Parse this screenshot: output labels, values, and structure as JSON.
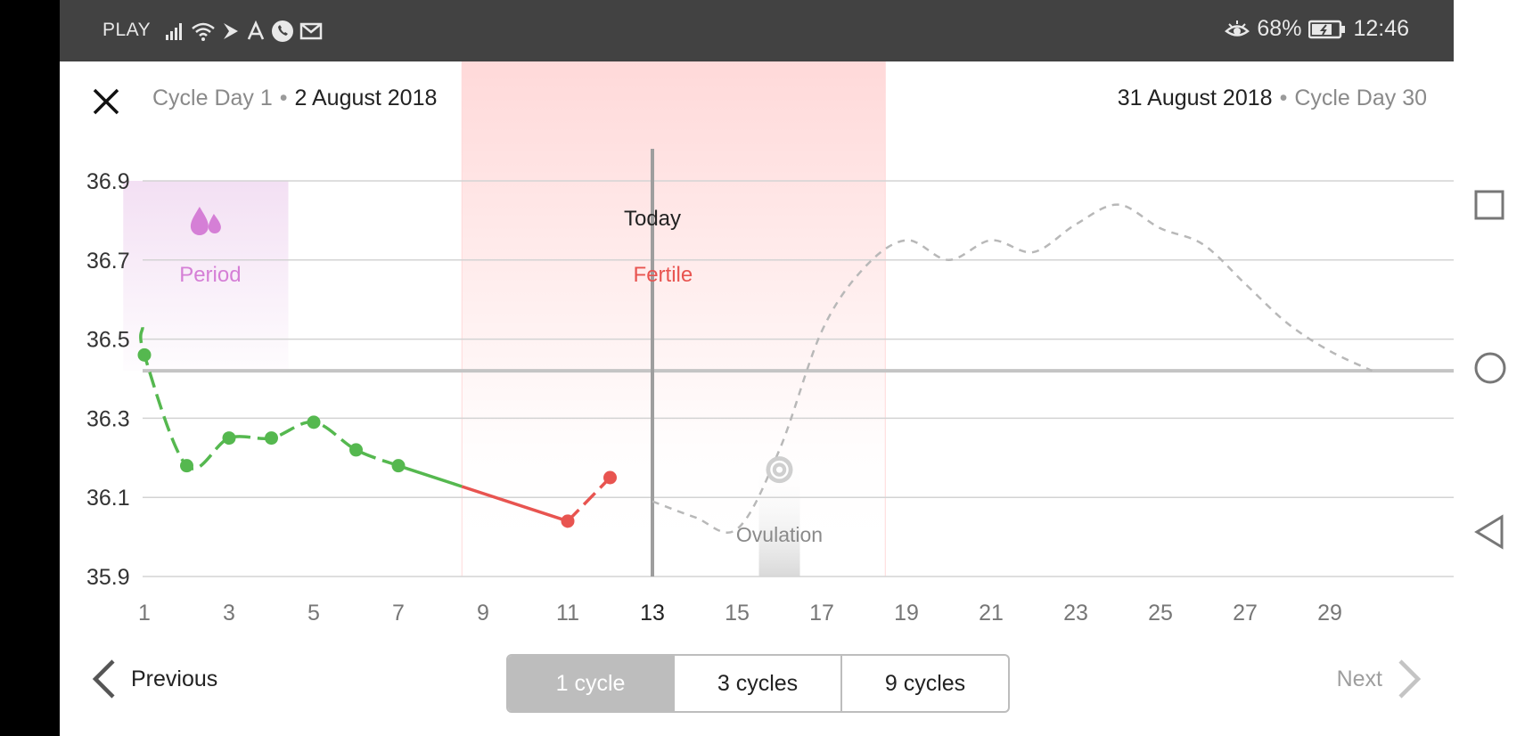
{
  "status_bar": {
    "carrier": "PLAY",
    "battery": "68%",
    "time": "12:46"
  },
  "header": {
    "start_cycle_day": "Cycle Day 1",
    "start_date": "2 August 2018",
    "end_date": "31 August 2018",
    "end_cycle_day": "Cycle Day 30"
  },
  "chart_data": {
    "type": "line",
    "ylim": [
      35.9,
      36.9
    ],
    "yticks": [
      "36.9",
      "36.7",
      "36.5",
      "36.3",
      "36.1",
      "35.9"
    ],
    "xticks": [
      "1",
      "3",
      "5",
      "7",
      "9",
      "11",
      "13",
      "15",
      "17",
      "19",
      "21",
      "23",
      "25",
      "27",
      "29"
    ],
    "today_tick": "13",
    "coverline": 36.42,
    "measured": [
      {
        "day": 1,
        "temp": 36.46,
        "phase": "period"
      },
      {
        "day": 2,
        "temp": 36.18,
        "phase": "period"
      },
      {
        "day": 3,
        "temp": 36.25,
        "phase": "period"
      },
      {
        "day": 4,
        "temp": 36.25,
        "phase": "period"
      },
      {
        "day": 5,
        "temp": 36.29,
        "phase": "normal"
      },
      {
        "day": 6,
        "temp": 36.22,
        "phase": "normal"
      },
      {
        "day": 7,
        "temp": 36.18,
        "phase": "normal"
      },
      {
        "day": 11,
        "temp": 36.04,
        "phase": "fertile"
      },
      {
        "day": 12,
        "temp": 36.15,
        "phase": "fertile"
      }
    ],
    "predicted": [
      {
        "day": 13,
        "temp": 36.09
      },
      {
        "day": 14,
        "temp": 36.05
      },
      {
        "day": 15,
        "temp": 36.02
      },
      {
        "day": 16,
        "temp": 36.22
      },
      {
        "day": 17,
        "temp": 36.52
      },
      {
        "day": 18,
        "temp": 36.68
      },
      {
        "day": 19,
        "temp": 36.75
      },
      {
        "day": 20,
        "temp": 36.7
      },
      {
        "day": 21,
        "temp": 36.75
      },
      {
        "day": 22,
        "temp": 36.72
      },
      {
        "day": 23,
        "temp": 36.79
      },
      {
        "day": 24,
        "temp": 36.84
      },
      {
        "day": 25,
        "temp": 36.78
      },
      {
        "day": 26,
        "temp": 36.74
      },
      {
        "day": 27,
        "temp": 36.64
      },
      {
        "day": 28,
        "temp": 36.54
      },
      {
        "day": 29,
        "temp": 36.47
      },
      {
        "day": 30,
        "temp": 36.42
      }
    ],
    "regions": {
      "period": {
        "label": "Period",
        "from_day": 0.5,
        "to_day": 4.4,
        "color": "#e9c6ea"
      },
      "fertile": {
        "label": "Fertile",
        "from_day": 8.5,
        "to_day": 18.5,
        "color": "#ffd7d7"
      },
      "ovulation": {
        "label": "Ovulation",
        "day": 16,
        "color": "#d9d9d9"
      }
    },
    "today_label": "Today",
    "today_day": 13,
    "colors": {
      "normal": "#55b84f",
      "fertile": "#e85450",
      "predicted": "#b8b8b8",
      "period_label": "#d57fd6",
      "fertile_label": "#e85450"
    }
  },
  "footer": {
    "previous_label": "Previous",
    "next_label": "Next",
    "ranges": [
      "1 cycle",
      "3 cycles",
      "9 cycles"
    ],
    "selected_range": "1 cycle"
  }
}
